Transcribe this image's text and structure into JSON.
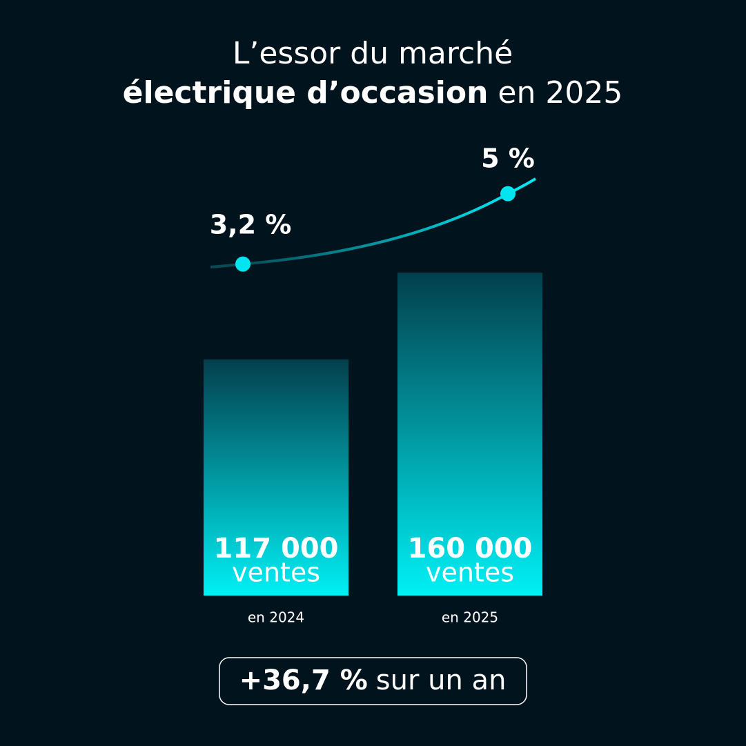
{
  "title": {
    "line1": "L’essor du marché",
    "bold": "électrique d’occasion",
    "rest": "en 2025"
  },
  "chart_data": [
    {
      "type": "bar",
      "categories": [
        "en 2024",
        "en 2025"
      ],
      "values": [
        117000,
        160000
      ],
      "value_labels": [
        "117 000",
        "160 000"
      ],
      "unit": "ventes",
      "color": "#00f0f5"
    },
    {
      "type": "line",
      "values": [
        3.2,
        5
      ],
      "value_labels": [
        "3,2 %",
        "5 %"
      ],
      "color": "#00e5ef"
    }
  ],
  "badge": {
    "change": "+36,7 %",
    "text": "sur un an"
  }
}
